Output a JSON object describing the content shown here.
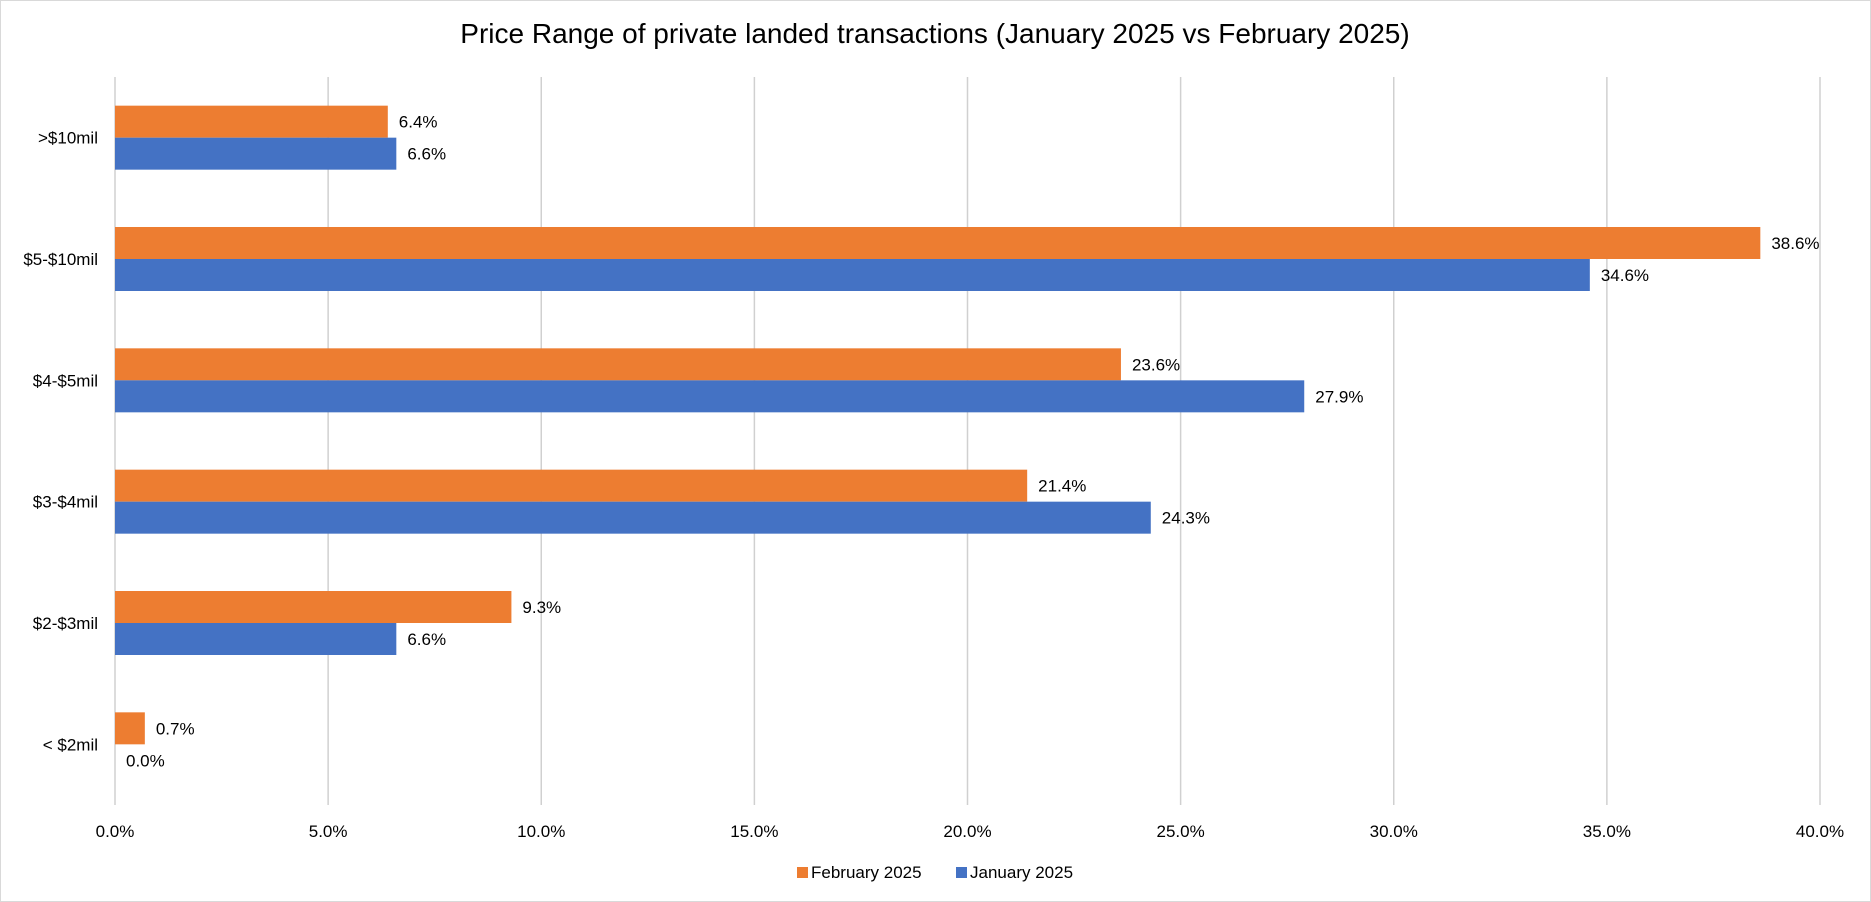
{
  "chart_data": {
    "type": "bar",
    "orientation": "horizontal",
    "title": "Price Range of private landed transactions (January 2025 vs February 2025)",
    "categories": [
      "< $2mil",
      "$2-$3mil",
      "$3-$4mil",
      "$4-$5mil",
      "$5-$10mil",
      ">$10mil"
    ],
    "series": [
      {
        "name": "February 2025",
        "values": [
          0.7,
          9.3,
          21.4,
          23.6,
          38.6,
          6.4
        ],
        "labels": [
          "0.7%",
          "9.3%",
          "21.4%",
          "23.6%",
          "38.6%",
          "6.4%"
        ],
        "color": "#ED7D31"
      },
      {
        "name": "January 2025",
        "values": [
          0.0,
          6.6,
          24.3,
          27.9,
          34.6,
          6.6
        ],
        "labels": [
          "0.0%",
          "6.6%",
          "24.3%",
          "27.9%",
          "34.6%",
          "6.6%"
        ],
        "color": "#4472C4"
      }
    ],
    "xlim": [
      0,
      40
    ],
    "xticks": [
      "0.0%",
      "5.0%",
      "10.0%",
      "15.0%",
      "20.0%",
      "25.0%",
      "30.0%",
      "35.0%",
      "40.0%"
    ],
    "grid": true,
    "legend": "bottom"
  }
}
